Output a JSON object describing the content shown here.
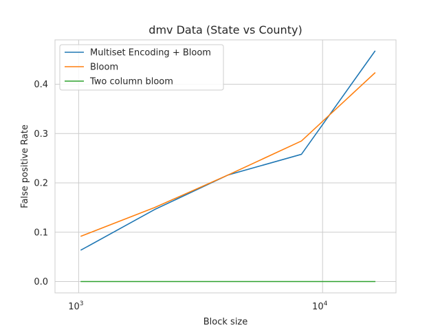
{
  "chart_data": {
    "type": "line",
    "title": "dmv Data (State vs County)",
    "xlabel": "Block size",
    "ylabel": "False positive Rate",
    "x_scale": "log",
    "xlim": [
      800,
      20000
    ],
    "ylim": [
      -0.023,
      0.49
    ],
    "grid": true,
    "legend_position": "top-left",
    "x_ticks": [
      {
        "base": "10",
        "exp": "3",
        "value": 1000
      },
      {
        "base": "10",
        "exp": "4",
        "value": 10000
      }
    ],
    "y_ticks": [
      {
        "label": "0.0",
        "value": 0.0
      },
      {
        "label": "0.1",
        "value": 0.1
      },
      {
        "label": "0.2",
        "value": 0.2
      },
      {
        "label": "0.3",
        "value": 0.3
      },
      {
        "label": "0.4",
        "value": 0.4
      }
    ],
    "x": [
      1024,
      2048,
      4096,
      8192,
      16384
    ],
    "series": [
      {
        "name": "Multiset Encoding + Bloom",
        "color": "#1f77b4",
        "values": [
          0.064,
          0.146,
          0.216,
          0.258,
          0.467
        ]
      },
      {
        "name": "Bloom",
        "color": "#ff7f0e",
        "values": [
          0.092,
          0.15,
          0.216,
          0.285,
          0.423
        ]
      },
      {
        "name": "Two column bloom",
        "color": "#2ca02c",
        "values": [
          0.0,
          0.0,
          0.0,
          0.0,
          0.0
        ]
      }
    ]
  }
}
